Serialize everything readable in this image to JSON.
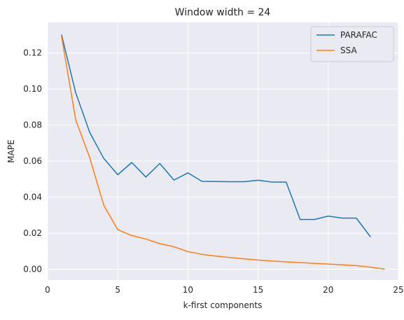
{
  "chart_data": {
    "type": "line",
    "title": "Window width = 24",
    "xlabel": "k-first components",
    "ylabel": "MAPE",
    "xlim": [
      0,
      25
    ],
    "ylim": [
      -0.006,
      0.137
    ],
    "xticks": [
      0,
      5,
      10,
      15,
      20,
      25
    ],
    "xtick_labels": [
      "0",
      "5",
      "10",
      "15",
      "20",
      "25"
    ],
    "yticks": [
      0.0,
      0.02,
      0.04,
      0.06,
      0.08,
      0.1,
      0.12
    ],
    "ytick_labels": [
      "0.00",
      "0.02",
      "0.04",
      "0.06",
      "0.08",
      "0.10",
      "0.12"
    ],
    "grid": true,
    "legend_position": "top-right",
    "series": [
      {
        "name": "PARAFAC",
        "color": "#1f77b4",
        "x": [
          1,
          2,
          3,
          4,
          5,
          6,
          7,
          8,
          9,
          10,
          11,
          12,
          13,
          14,
          15,
          16,
          17,
          18,
          19,
          20,
          21,
          22,
          23
        ],
        "y": [
          0.13,
          0.098,
          0.076,
          0.0615,
          0.0525,
          0.0593,
          0.0512,
          0.0587,
          0.0495,
          0.0535,
          0.0488,
          0.0487,
          0.0486,
          0.0486,
          0.0494,
          0.0484,
          0.0484,
          0.0276,
          0.0276,
          0.0295,
          0.0284,
          0.0284,
          0.0181
        ]
      },
      {
        "name": "SSA",
        "color": "#ff7f0e",
        "x": [
          1,
          2,
          3,
          4,
          5,
          6,
          7,
          8,
          9,
          10,
          11,
          12,
          13,
          14,
          15,
          16,
          17,
          18,
          19,
          20,
          21,
          22,
          23,
          24
        ],
        "y": [
          0.129,
          0.083,
          0.062,
          0.0355,
          0.022,
          0.0187,
          0.0168,
          0.0142,
          0.0125,
          0.0098,
          0.0083,
          0.0073,
          0.0065,
          0.0058,
          0.0051,
          0.0046,
          0.0041,
          0.0037,
          0.0033,
          0.0029,
          0.0025,
          0.002,
          0.0012,
          0.0001
        ]
      }
    ]
  }
}
